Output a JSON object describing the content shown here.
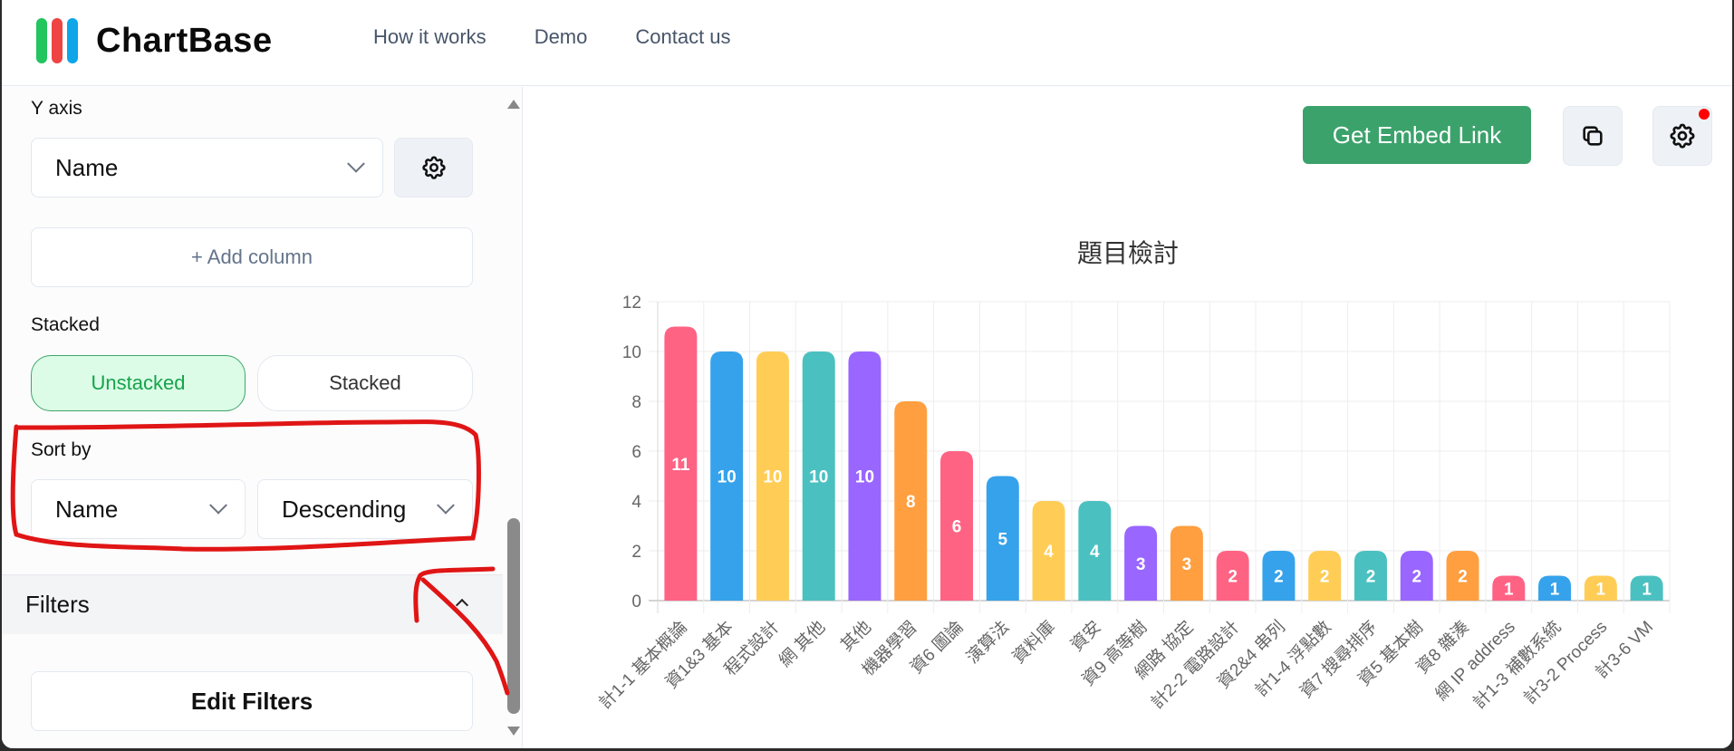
{
  "header": {
    "logo_text": "ChartBase",
    "logo_colors": [
      "#22c55e",
      "#ef4444",
      "#0ea5e9"
    ],
    "nav": [
      "How it works",
      "Demo",
      "Contact us"
    ]
  },
  "sidebar": {
    "y_axis": {
      "label": "Y axis",
      "value": "Name",
      "settings_icon": "gear-icon"
    },
    "add_column_label": "+ Add column",
    "stacked": {
      "label": "Stacked",
      "options": [
        "Unstacked",
        "Stacked"
      ],
      "active": "Unstacked"
    },
    "sort_by": {
      "label": "Sort by",
      "field": "Name",
      "order": "Descending"
    },
    "filters": {
      "label": "Filters",
      "edit_label": "Edit Filters"
    }
  },
  "toolbar": {
    "embed_label": "Get Embed Link",
    "copy_icon": "copy-icon",
    "settings_icon": "gear-icon",
    "accent": "#3ba26b",
    "notification_color": "#ff0000"
  },
  "chart_data": {
    "type": "bar",
    "title": "題目檢討",
    "xlabel": "",
    "ylabel": "",
    "ylim": [
      0,
      12
    ],
    "yticks": [
      0,
      2,
      4,
      6,
      8,
      10,
      12
    ],
    "grid": true,
    "legend": "none",
    "data_labels": true,
    "categories": [
      "計1-1 基本概論",
      "資1&3 基本",
      "程式設計",
      "網 其他",
      "其他",
      "機器學習",
      "資6 圖論",
      "演算法",
      "資料庫",
      "資安",
      "資9 高等樹",
      "網路 協定",
      "計2-2 電路設計",
      "資2&4 串列",
      "計1-4 浮點數",
      "資7 搜尋排序",
      "資5 基本樹",
      "資8 雜湊",
      "網 IP address",
      "計1-3 補數系統",
      "計3-2 Process",
      "計3-6 VM"
    ],
    "values": [
      11,
      10,
      10,
      10,
      10,
      8,
      6,
      5,
      4,
      4,
      3,
      3,
      2,
      2,
      2,
      2,
      2,
      2,
      1,
      1,
      1,
      1
    ],
    "palette": [
      "#ff6384",
      "#36a2eb",
      "#ffcd56",
      "#4bc0c0",
      "#9966ff",
      "#ff9f40"
    ]
  }
}
